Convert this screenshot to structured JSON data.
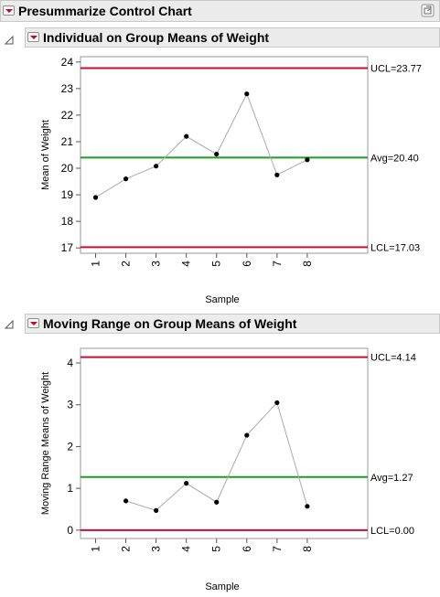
{
  "outline": {
    "main_title": "Presummarize Control Chart"
  },
  "charts": [
    {
      "title": "Individual on Group Means of Weight",
      "ylabel": "Mean of Weight",
      "xlabel": "Sample",
      "yticks": [
        "17",
        "18",
        "19",
        "20",
        "21",
        "22",
        "23",
        "24"
      ],
      "xticks": [
        "1",
        "2",
        "3",
        "4",
        "5",
        "6",
        "7",
        "8"
      ],
      "ucl_label": "UCL=23.77",
      "avg_label": "Avg=20.40",
      "lcl_label": "LCL=17.03"
    },
    {
      "title": "Moving Range on Group Means of Weight",
      "ylabel": "Moving Range Means of Weight",
      "xlabel": "Sample",
      "yticks": [
        "0",
        "1",
        "2",
        "3",
        "4"
      ],
      "xticks": [
        "1",
        "2",
        "3",
        "4",
        "5",
        "6",
        "7",
        "8"
      ],
      "ucl_label": "UCL=4.14",
      "avg_label": "Avg=1.27",
      "lcl_label": "LCL=0.00"
    }
  ],
  "colors": {
    "limit_line": "#c8102e",
    "center_line": "#1aa01a",
    "connect_line": "#aaaaaa",
    "point": "#000000"
  },
  "chart_data": [
    {
      "type": "line",
      "title": "Individual on Group Means of Weight",
      "xlabel": "Sample",
      "ylabel": "Mean of Weight",
      "x": [
        1,
        2,
        3,
        4,
        5,
        6,
        7,
        8
      ],
      "values": [
        18.9,
        19.6,
        20.08,
        21.2,
        20.53,
        22.8,
        19.75,
        20.32
      ],
      "ylim": [
        16.8,
        24.2
      ],
      "xlim": [
        0.5,
        10
      ],
      "ucl": 23.77,
      "center": 20.4,
      "lcl": 17.03,
      "grid": false
    },
    {
      "type": "line",
      "title": "Moving Range on Group Means of Weight",
      "xlabel": "Sample",
      "ylabel": "Moving Range Means of Weight",
      "x": [
        2,
        3,
        4,
        5,
        6,
        7,
        8
      ],
      "values": [
        0.7,
        0.47,
        1.12,
        0.67,
        2.27,
        3.05,
        0.57
      ],
      "ylim": [
        -0.2,
        4.35
      ],
      "xlim": [
        0.5,
        10
      ],
      "ucl": 4.14,
      "center": 1.27,
      "lcl": 0.0,
      "grid": false
    }
  ]
}
